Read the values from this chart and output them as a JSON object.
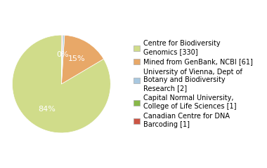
{
  "labels": [
    "Centre for Biodiversity\nGenomics [330]",
    "Mined from GenBank, NCBI [61]",
    "University of Vienna, Dept of\nBotany and Biodiversity\nResearch [2]",
    "Capital Normal University,\nCollege of Life Sciences [1]",
    "Canadian Centre for DNA\nBarcoding [1]"
  ],
  "values": [
    330,
    61,
    2,
    1,
    1
  ],
  "colors": [
    "#d0dc8a",
    "#e8a868",
    "#a8c8e0",
    "#88b848",
    "#cc5544"
  ],
  "background_color": "#ffffff",
  "legend_fontsize": 7.0,
  "text_color": "#ffffff",
  "startangle": 90
}
